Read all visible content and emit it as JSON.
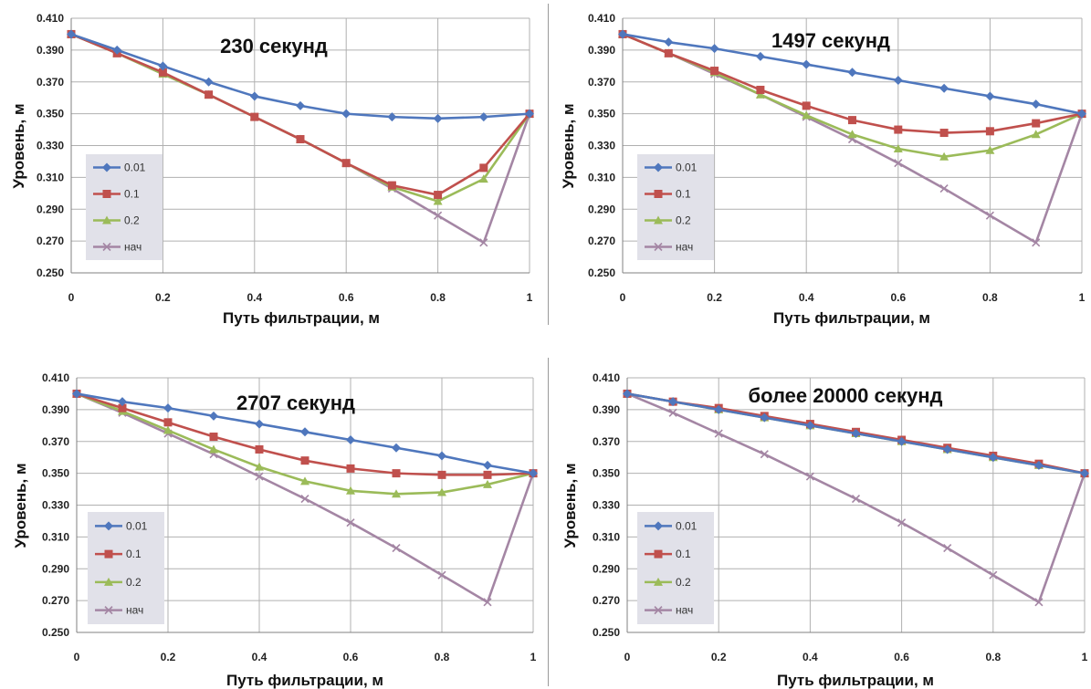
{
  "figure": {
    "grid": true,
    "legend_placement": "left-bottom",
    "colors": {
      "0.01": "#4f77bd",
      "0.1": "#c0504d",
      "0.2": "#9bbb59",
      "нач": "#a486a4",
      "legend_bg": "#e1e1e9",
      "grid": "#b0b0b0"
    }
  },
  "chart_data": [
    {
      "type": "line",
      "title": "230 секунд",
      "xlabel": "Путь фильтрации, м",
      "ylabel": "Уровень, м",
      "xlim": [
        0,
        1
      ],
      "ylim": [
        0.25,
        0.41
      ],
      "xticks": [
        0,
        0.2,
        0.4,
        0.6,
        0.8,
        1
      ],
      "xtick_labels": [
        "0",
        "0.2",
        "0.4",
        "0.6",
        "0.8",
        "1"
      ],
      "yticks": [
        0.25,
        0.27,
        0.29,
        0.31,
        0.33,
        0.35,
        0.37,
        0.39,
        0.41
      ],
      "ytick_labels": [
        "0.250",
        "0.270",
        "0.290",
        "0.310",
        "0.330",
        "0.350",
        "0.370",
        "0.390",
        "0.410"
      ],
      "x": [
        0,
        0.1,
        0.2,
        0.3,
        0.4,
        0.5,
        0.6,
        0.7,
        0.8,
        0.9,
        1
      ],
      "series": [
        {
          "name": "0.01",
          "marker": "diamond",
          "values": [
            0.4,
            0.39,
            0.38,
            0.37,
            0.361,
            0.355,
            0.35,
            0.348,
            0.347,
            0.348,
            0.35
          ]
        },
        {
          "name": "0.1",
          "marker": "square",
          "values": [
            0.4,
            0.388,
            0.376,
            0.362,
            0.348,
            0.334,
            0.319,
            0.305,
            0.299,
            0.316,
            0.35
          ]
        },
        {
          "name": "0.2",
          "marker": "triangle",
          "values": [
            0.4,
            0.388,
            0.375,
            0.362,
            0.348,
            0.334,
            0.319,
            0.304,
            0.295,
            0.309,
            0.35
          ]
        },
        {
          "name": "нач",
          "marker": "x",
          "values": [
            0.4,
            0.388,
            0.375,
            0.362,
            0.348,
            0.334,
            0.319,
            0.303,
            0.286,
            0.269,
            0.35
          ]
        }
      ]
    },
    {
      "type": "line",
      "title": "1497 секунд",
      "xlabel": "Путь фильтрации, м",
      "ylabel": "Уровень, м",
      "xlim": [
        0,
        1
      ],
      "ylim": [
        0.25,
        0.41
      ],
      "xticks": [
        0,
        0.2,
        0.4,
        0.6,
        0.8,
        1
      ],
      "xtick_labels": [
        "0",
        "0.2",
        "0.4",
        "0.6",
        "0.8",
        "1"
      ],
      "yticks": [
        0.25,
        0.27,
        0.29,
        0.31,
        0.33,
        0.35,
        0.37,
        0.39,
        0.41
      ],
      "ytick_labels": [
        "0.250",
        "0.270",
        "0.290",
        "0.310",
        "0.330",
        "0.350",
        "0.370",
        "0.390",
        "0.410"
      ],
      "x": [
        0,
        0.1,
        0.2,
        0.3,
        0.4,
        0.5,
        0.6,
        0.7,
        0.8,
        0.9,
        1
      ],
      "series": [
        {
          "name": "0.01",
          "marker": "diamond",
          "values": [
            0.4,
            0.395,
            0.391,
            0.386,
            0.381,
            0.376,
            0.371,
            0.366,
            0.361,
            0.356,
            0.35
          ]
        },
        {
          "name": "0.1",
          "marker": "square",
          "values": [
            0.4,
            0.388,
            0.377,
            0.365,
            0.355,
            0.346,
            0.34,
            0.338,
            0.339,
            0.344,
            0.35
          ]
        },
        {
          "name": "0.2",
          "marker": "triangle",
          "values": [
            0.4,
            0.388,
            0.376,
            0.362,
            0.349,
            0.337,
            0.328,
            0.323,
            0.327,
            0.337,
            0.35
          ]
        },
        {
          "name": "нач",
          "marker": "x",
          "values": [
            0.4,
            0.388,
            0.375,
            0.362,
            0.348,
            0.334,
            0.319,
            0.303,
            0.286,
            0.269,
            0.35
          ]
        }
      ]
    },
    {
      "type": "line",
      "title": "2707 секунд",
      "xlabel": "Путь фильтрации, м",
      "ylabel": "Уровень, м",
      "xlim": [
        0,
        1
      ],
      "ylim": [
        0.25,
        0.41
      ],
      "xticks": [
        0,
        0.2,
        0.4,
        0.6,
        0.8,
        1
      ],
      "xtick_labels": [
        "0",
        "0.2",
        "0.4",
        "0.6",
        "0.8",
        "1"
      ],
      "yticks": [
        0.25,
        0.27,
        0.29,
        0.31,
        0.33,
        0.35,
        0.37,
        0.39,
        0.41
      ],
      "ytick_labels": [
        "0.250",
        "0.270",
        "0.290",
        "0.310",
        "0.330",
        "0.350",
        "0.370",
        "0.390",
        "0.410"
      ],
      "x": [
        0,
        0.1,
        0.2,
        0.3,
        0.4,
        0.5,
        0.6,
        0.7,
        0.8,
        0.9,
        1
      ],
      "series": [
        {
          "name": "0.01",
          "marker": "diamond",
          "values": [
            0.4,
            0.395,
            0.391,
            0.386,
            0.381,
            0.376,
            0.371,
            0.366,
            0.361,
            0.355,
            0.35
          ]
        },
        {
          "name": "0.1",
          "marker": "square",
          "values": [
            0.4,
            0.391,
            0.382,
            0.373,
            0.365,
            0.358,
            0.353,
            0.35,
            0.349,
            0.349,
            0.35
          ]
        },
        {
          "name": "0.2",
          "marker": "triangle",
          "values": [
            0.4,
            0.389,
            0.377,
            0.365,
            0.354,
            0.345,
            0.339,
            0.337,
            0.338,
            0.343,
            0.35
          ]
        },
        {
          "name": "нач",
          "marker": "x",
          "values": [
            0.4,
            0.388,
            0.375,
            0.362,
            0.348,
            0.334,
            0.319,
            0.303,
            0.286,
            0.269,
            0.35
          ]
        }
      ]
    },
    {
      "type": "line",
      "title": "более 20000 секунд",
      "xlabel": "Путь фильтрации, м",
      "ylabel": "Уровень, м",
      "xlim": [
        0,
        1
      ],
      "ylim": [
        0.25,
        0.41
      ],
      "xticks": [
        0,
        0.2,
        0.4,
        0.6,
        0.8,
        1
      ],
      "xtick_labels": [
        "0",
        "0.2",
        "0.4",
        "0.6",
        "0.8",
        "1"
      ],
      "yticks": [
        0.25,
        0.27,
        0.29,
        0.31,
        0.33,
        0.35,
        0.37,
        0.39,
        0.41
      ],
      "ytick_labels": [
        "0.250",
        "0.270",
        "0.290",
        "0.310",
        "0.330",
        "0.350",
        "0.370",
        "0.390",
        "0.410"
      ],
      "x": [
        0,
        0.1,
        0.2,
        0.3,
        0.4,
        0.5,
        0.6,
        0.7,
        0.8,
        0.9,
        1
      ],
      "series": [
        {
          "name": "0.01",
          "marker": "diamond",
          "values": [
            0.4,
            0.395,
            0.39,
            0.385,
            0.38,
            0.375,
            0.37,
            0.365,
            0.36,
            0.355,
            0.35
          ]
        },
        {
          "name": "0.1",
          "marker": "square",
          "values": [
            0.4,
            0.395,
            0.391,
            0.386,
            0.381,
            0.376,
            0.371,
            0.366,
            0.361,
            0.356,
            0.35
          ]
        },
        {
          "name": "0.2",
          "marker": "triangle",
          "values": [
            0.4,
            0.395,
            0.39,
            0.385,
            0.38,
            0.375,
            0.37,
            0.365,
            0.36,
            0.355,
            0.35
          ]
        },
        {
          "name": "нач",
          "marker": "x",
          "values": [
            0.4,
            0.388,
            0.375,
            0.362,
            0.348,
            0.334,
            0.319,
            0.303,
            0.286,
            0.269,
            0.35
          ]
        }
      ]
    }
  ]
}
